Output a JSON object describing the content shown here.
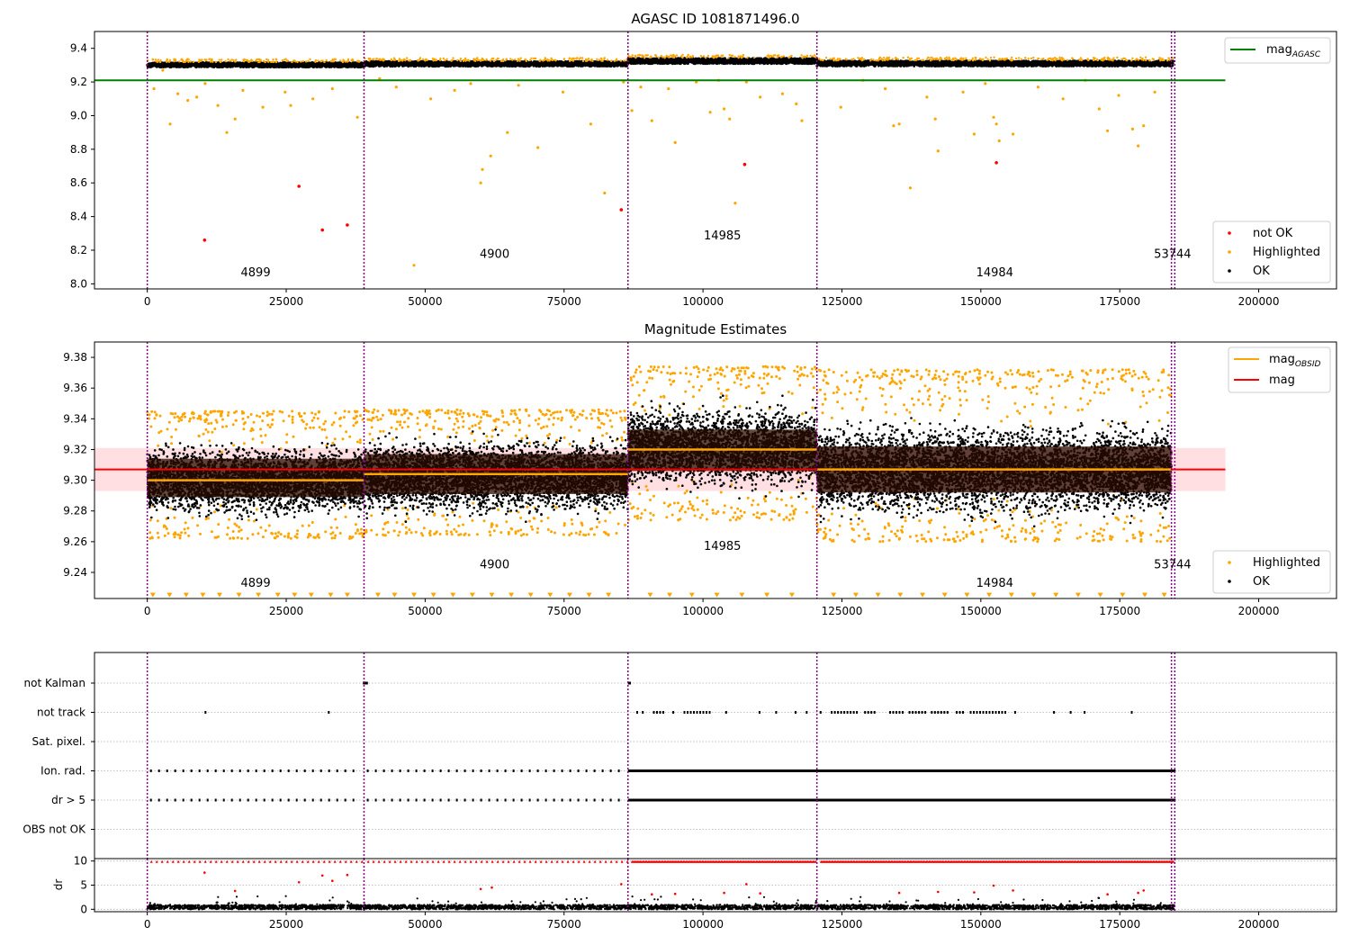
{
  "colors": {
    "ok": "#000000",
    "highlighted": "#ffa500",
    "not_ok": "#ff0000",
    "agasc_line": "#008000",
    "mag_line": "#ff0000",
    "mag_band": "#ffc0c6",
    "obsid_line": "#ffa500",
    "obsid_band": "#2a0c00",
    "boundary": "#8b008b",
    "grid": "#b0b0b0"
  },
  "chart_data": [
    {
      "id": "agasc",
      "type": "scatter",
      "title": "AGASC ID 1081871496.0",
      "xlim": [
        -9500,
        214000
      ],
      "ylim": [
        7.97,
        9.5
      ],
      "xticks": [
        0,
        25000,
        50000,
        75000,
        100000,
        125000,
        150000,
        175000,
        200000
      ],
      "xtick_labels": [
        "0",
        "25000",
        "50000",
        "75000",
        "100000",
        "125000",
        "150000",
        "175000",
        "200000"
      ],
      "yticks": [
        8.0,
        8.2,
        8.4,
        8.6,
        8.8,
        9.0,
        9.2,
        9.4
      ],
      "ytick_labels": [
        "8.0",
        "8.2",
        "8.4",
        "8.6",
        "8.8",
        "9.0",
        "9.2",
        "9.4"
      ],
      "obsid_boundaries": [
        0,
        39000,
        86500,
        120500,
        184300,
        184900
      ],
      "obsid_labels": [
        {
          "text": "4899",
          "x": 19500,
          "y": 8.045
        },
        {
          "text": "4900",
          "x": 62500,
          "y": 8.155
        },
        {
          "text": "14985",
          "x": 103500,
          "y": 8.265
        },
        {
          "text": "14984",
          "x": 152500,
          "y": 8.045
        },
        {
          "text": "53744",
          "x": 184500,
          "y": 8.155
        }
      ],
      "agasc_mag": {
        "value": 9.21,
        "x_range": [
          -9500,
          194000
        ]
      },
      "ok_bands": [
        {
          "x": [
            0,
            39000
          ],
          "center": 9.302,
          "halfwidth": 0.028
        },
        {
          "x": [
            39000,
            86500
          ],
          "center": 9.308,
          "halfwidth": 0.03
        },
        {
          "x": [
            86500,
            120500
          ],
          "center": 9.325,
          "halfwidth": 0.033
        },
        {
          "x": [
            120500,
            184600
          ],
          "center": 9.31,
          "halfwidth": 0.032
        }
      ],
      "not_ok_points": [
        [
          10300,
          8.26
        ],
        [
          27300,
          8.58
        ],
        [
          31500,
          8.32
        ],
        [
          36000,
          8.35
        ],
        [
          85300,
          8.44
        ],
        [
          107500,
          8.71
        ],
        [
          152800,
          8.72
        ]
      ],
      "highlighted_points": [
        [
          1200,
          9.16
        ],
        [
          2800,
          9.27
        ],
        [
          4100,
          8.95
        ],
        [
          5500,
          9.13
        ],
        [
          7300,
          9.09
        ],
        [
          8900,
          9.11
        ],
        [
          10400,
          9.19
        ],
        [
          12700,
          9.06
        ],
        [
          14300,
          8.9
        ],
        [
          15800,
          8.98
        ],
        [
          17200,
          9.15
        ],
        [
          20800,
          9.05
        ],
        [
          24800,
          9.14
        ],
        [
          25800,
          9.06
        ],
        [
          29800,
          9.1
        ],
        [
          33300,
          9.16
        ],
        [
          37800,
          8.99
        ],
        [
          41800,
          9.22
        ],
        [
          44800,
          9.17
        ],
        [
          48000,
          8.11
        ],
        [
          51000,
          9.1
        ],
        [
          55300,
          9.15
        ],
        [
          58200,
          9.19
        ],
        [
          60000,
          8.6
        ],
        [
          60300,
          8.68
        ],
        [
          61800,
          8.76
        ],
        [
          64800,
          8.9
        ],
        [
          66800,
          9.18
        ],
        [
          70300,
          8.81
        ],
        [
          74800,
          9.14
        ],
        [
          79800,
          8.95
        ],
        [
          82300,
          8.54
        ],
        [
          85700,
          9.2
        ],
        [
          87200,
          9.03
        ],
        [
          88800,
          9.17
        ],
        [
          90800,
          8.97
        ],
        [
          93800,
          9.16
        ],
        [
          95000,
          8.84
        ],
        [
          98800,
          9.2
        ],
        [
          101300,
          9.02
        ],
        [
          102800,
          9.21
        ],
        [
          103800,
          9.04
        ],
        [
          104800,
          8.98
        ],
        [
          105800,
          8.48
        ],
        [
          107800,
          9.2
        ],
        [
          110300,
          9.11
        ],
        [
          114300,
          9.13
        ],
        [
          116800,
          9.07
        ],
        [
          117800,
          8.97
        ],
        [
          124800,
          9.05
        ],
        [
          128800,
          9.21
        ],
        [
          132800,
          9.16
        ],
        [
          134300,
          8.94
        ],
        [
          135300,
          8.95
        ],
        [
          137300,
          8.57
        ],
        [
          140300,
          9.11
        ],
        [
          141800,
          8.98
        ],
        [
          142300,
          8.79
        ],
        [
          146800,
          9.14
        ],
        [
          148800,
          8.89
        ],
        [
          150800,
          9.19
        ],
        [
          152300,
          8.99
        ],
        [
          152800,
          8.95
        ],
        [
          153300,
          8.85
        ],
        [
          155800,
          8.89
        ],
        [
          160300,
          9.17
        ],
        [
          164800,
          9.1
        ],
        [
          168800,
          9.21
        ],
        [
          171300,
          9.04
        ],
        [
          172800,
          8.91
        ],
        [
          174800,
          9.12
        ],
        [
          177300,
          8.92
        ],
        [
          178300,
          8.82
        ],
        [
          179300,
          8.94
        ],
        [
          181300,
          9.14
        ]
      ],
      "legend": {
        "placement": "upper right",
        "entries": [
          {
            "label": "mag",
            "sub": "AGASC",
            "kind": "line",
            "color": "#008000"
          }
        ]
      },
      "legend2": {
        "placement": "lower right",
        "entries": [
          {
            "label": "not OK",
            "kind": "point",
            "color": "#ff0000"
          },
          {
            "label": "Highlighted",
            "kind": "point",
            "color": "#ffa500"
          },
          {
            "label": "OK",
            "kind": "point",
            "color": "#000000"
          }
        ]
      }
    },
    {
      "id": "estimates",
      "type": "scatter",
      "title": "Magnitude Estimates",
      "xlim": [
        -9500,
        214000
      ],
      "ylim": [
        9.223,
        9.39
      ],
      "xticks": [
        0,
        25000,
        50000,
        75000,
        100000,
        125000,
        150000,
        175000,
        200000
      ],
      "xtick_labels": [
        "0",
        "25000",
        "50000",
        "75000",
        "100000",
        "125000",
        "150000",
        "175000",
        "200000"
      ],
      "yticks": [
        9.24,
        9.26,
        9.28,
        9.3,
        9.32,
        9.34,
        9.36,
        9.38
      ],
      "ytick_labels": [
        "9.24",
        "9.26",
        "9.28",
        "9.30",
        "9.32",
        "9.34",
        "9.36",
        "9.38"
      ],
      "obsid_boundaries": [
        0,
        39000,
        86500,
        120500,
        184300,
        184900
      ],
      "obsid_labels": [
        {
          "text": "4899",
          "x": 19500,
          "y": 9.2305
        },
        {
          "text": "4900",
          "x": 62500,
          "y": 9.2425
        },
        {
          "text": "14985",
          "x": 103500,
          "y": 9.2545
        },
        {
          "text": "14984",
          "x": 152500,
          "y": 9.2305
        },
        {
          "text": "53744",
          "x": 184500,
          "y": 9.2425
        }
      ],
      "mag": {
        "value": 9.307,
        "lower": 9.293,
        "upper": 9.321,
        "x_range": [
          -9500,
          194000
        ]
      },
      "obsid_mags": [
        {
          "x": [
            0,
            39000
          ],
          "value": 9.3,
          "lower": 9.289,
          "upper": 9.314
        },
        {
          "x": [
            39000,
            86500
          ],
          "value": 9.304,
          "lower": 9.291,
          "upper": 9.317
        },
        {
          "x": [
            86500,
            120500
          ],
          "value": 9.32,
          "lower": 9.306,
          "upper": 9.333
        },
        {
          "x": [
            120500,
            184300
          ],
          "value": 9.307,
          "lower": 9.292,
          "upper": 9.322
        }
      ],
      "ok_bands": [
        {
          "x": [
            0,
            39000
          ],
          "low": 9.272,
          "high": 9.328
        },
        {
          "x": [
            39000,
            86500
          ],
          "low": 9.273,
          "high": 9.333
        },
        {
          "x": [
            86500,
            120500
          ],
          "low": 9.288,
          "high": 9.355
        },
        {
          "x": [
            120500,
            184300
          ],
          "low": 9.27,
          "high": 9.344
        }
      ],
      "highlighted_bands": [
        {
          "x": [
            0,
            39000
          ],
          "low": 9.262,
          "high": 9.345
        },
        {
          "x": [
            39000,
            86500
          ],
          "low": 9.264,
          "high": 9.346
        },
        {
          "x": [
            86500,
            120500
          ],
          "low": 9.274,
          "high": 9.374
        },
        {
          "x": [
            120500,
            184300
          ],
          "low": 9.26,
          "high": 9.372
        }
      ],
      "lower_limit_markers": {
        "y": 9.225,
        "x": [
          1000,
          4000,
          7000,
          10000,
          13000,
          16500,
          20000,
          23500,
          26500,
          29500,
          33000,
          36000,
          41500,
          44500,
          48000,
          51500,
          55000,
          58500,
          62000,
          65500,
          69000,
          72500,
          76000,
          79500,
          83000,
          90500,
          94000,
          98000,
          102500,
          107000,
          111500,
          116000,
          123500,
          127500,
          131500,
          135500,
          139500,
          143500,
          147500,
          151500,
          155500,
          159500,
          163500,
          167500,
          171500,
          175500,
          179500,
          183000
        ]
      },
      "legend": {
        "placement": "upper right",
        "entries": [
          {
            "label": "mag",
            "sub": "OBSID",
            "kind": "line",
            "color": "#ffa500"
          },
          {
            "label": "mag",
            "kind": "line",
            "color": "#ff0000"
          }
        ]
      },
      "legend2": {
        "placement": "lower right",
        "entries": [
          {
            "label": "Highlighted",
            "kind": "point",
            "color": "#ffa500"
          },
          {
            "label": "OK",
            "kind": "point",
            "color": "#000000"
          }
        ]
      }
    },
    {
      "id": "flags",
      "type": "scatter",
      "title": "",
      "xlim": [
        -9500,
        214000
      ],
      "categories": [
        "not Kalman",
        "not track",
        "Sat. pixel.",
        "Ion. rad.",
        "dr > 5",
        "OBS not OK"
      ],
      "obsid_boundaries": [
        0,
        39000,
        86500,
        120500,
        184300,
        184900
      ],
      "flag_rows": [
        {
          "label": "not Kalman",
          "ranges": [
            [
              38800,
              39500
            ],
            [
              86500,
              86700
            ]
          ],
          "density": "dense"
        },
        {
          "label": "not track",
          "ranges": [
            [
              10300,
              10700
            ],
            [
              32500,
              32700
            ],
            [
              88000,
              88200
            ],
            [
              89000,
              89500
            ],
            [
              91000,
              93000
            ],
            [
              94500,
              95000
            ],
            [
              96500,
              101500
            ],
            [
              104000,
              104500
            ],
            [
              110000,
              110200
            ],
            [
              113000,
              113200
            ],
            [
              116500,
              116700
            ],
            [
              118500,
              119000
            ],
            [
              121000,
              121200
            ],
            [
              123000,
              128000
            ],
            [
              129000,
              131000
            ],
            [
              133500,
              136000
            ],
            [
              137000,
              140000
            ],
            [
              141000,
              144000
            ],
            [
              145500,
              147000
            ],
            [
              148000,
              154500
            ],
            [
              156000,
              156200
            ],
            [
              163000,
              163200
            ],
            [
              166000,
              166200
            ],
            [
              168500,
              168700
            ],
            [
              177000,
              177200
            ]
          ],
          "density": "sparse"
        },
        {
          "label": "Sat. pixel.",
          "ranges": [],
          "density": "none"
        },
        {
          "label": "Ion. rad.",
          "ranges": [
            [
              500,
              38000
            ],
            [
              39500,
              86000
            ],
            [
              86500,
              184800
            ]
          ],
          "density": "mixed"
        },
        {
          "label": "dr > 5",
          "ranges": [
            [
              500,
              38000
            ],
            [
              39500,
              86000
            ],
            [
              86500,
              184800
            ]
          ],
          "density": "mixed"
        },
        {
          "label": "OBS not OK",
          "ranges": [],
          "density": "none"
        }
      ]
    },
    {
      "id": "dr",
      "type": "scatter",
      "title": "",
      "ylabel": "dr",
      "xlim": [
        -9500,
        214000
      ],
      "ylim": [
        -0.5,
        10.5
      ],
      "xticks": [
        0,
        25000,
        50000,
        75000,
        100000,
        125000,
        150000,
        175000,
        200000
      ],
      "xtick_labels": [
        "0",
        "25000",
        "50000",
        "75000",
        "100000",
        "125000",
        "150000",
        "175000",
        "200000"
      ],
      "yticks": [
        0,
        5,
        10
      ],
      "ytick_labels": [
        "0",
        "5",
        "10"
      ],
      "obsid_boundaries": [
        0,
        39000,
        86500,
        120500,
        184300,
        184900
      ],
      "capped_value": 10,
      "outlier_points": [
        [
          10300,
          7.6
        ],
        [
          15800,
          3.8
        ],
        [
          27300,
          5.6
        ],
        [
          31500,
          7.0
        ],
        [
          33300,
          5.9
        ],
        [
          36000,
          7.1
        ],
        [
          60000,
          4.2
        ],
        [
          62000,
          4.5
        ],
        [
          85300,
          5.2
        ],
        [
          90800,
          3.1
        ],
        [
          95000,
          3.2
        ],
        [
          103800,
          3.4
        ],
        [
          107800,
          5.2
        ],
        [
          110300,
          3.3
        ],
        [
          135300,
          3.4
        ],
        [
          142300,
          3.6
        ],
        [
          148800,
          3.5
        ],
        [
          152300,
          4.9
        ],
        [
          155800,
          3.9
        ],
        [
          172800,
          3.1
        ],
        [
          178300,
          3.4
        ],
        [
          179300,
          3.9
        ]
      ]
    }
  ]
}
